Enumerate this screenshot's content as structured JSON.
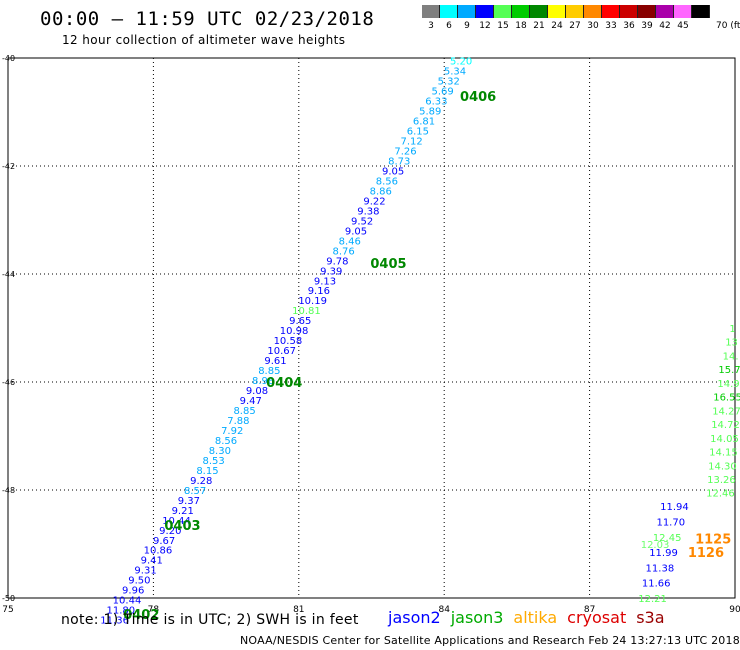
{
  "header": {
    "title": "00:00 – 11:59 UTC 02/23/2018",
    "subtitle": "12 hour collection of altimeter wave heights"
  },
  "color_scale": {
    "unit": "70 (ft)",
    "swatches": [
      {
        "label": "3",
        "color": "#7f7f7f"
      },
      {
        "label": "6",
        "color": "#00ffff"
      },
      {
        "label": "9",
        "color": "#00aaff"
      },
      {
        "label": "12",
        "color": "#0000ff"
      },
      {
        "label": "15",
        "color": "#55ff55"
      },
      {
        "label": "18",
        "color": "#00cc00"
      },
      {
        "label": "21",
        "color": "#008800"
      },
      {
        "label": "24",
        "color": "#ffff00"
      },
      {
        "label": "27",
        "color": "#ffcc00"
      },
      {
        "label": "30",
        "color": "#ff8800"
      },
      {
        "label": "33",
        "color": "#ff0000"
      },
      {
        "label": "36",
        "color": "#cc0000"
      },
      {
        "label": "39",
        "color": "#880000"
      },
      {
        "label": "42",
        "color": "#aa00aa"
      },
      {
        "label": "45",
        "color": "#ff66ff"
      },
      {
        "label": "",
        "color": "#000000"
      }
    ]
  },
  "map": {
    "lon_ticks": [
      "75",
      "78",
      "81",
      "84",
      "87",
      "90"
    ],
    "lat_ticks": [
      "-40",
      "-42",
      "-44",
      "-46",
      "-48",
      "-50"
    ],
    "grid": true
  },
  "tracks": [
    {
      "name": "main",
      "start": {
        "lon": 77.2,
        "lat": -50.4
      },
      "end": {
        "lon": 84.35,
        "lat": -40.05
      },
      "values": [
        "11.36",
        "11.80",
        "10.44",
        "9.96",
        "9.50",
        "9.31",
        "9.41",
        "10.86",
        "9.67",
        "9.20",
        "10.44",
        "9.21",
        "9.37",
        "8.57",
        "9.28",
        "8.15",
        "8.53",
        "8.30",
        "8.56",
        "7.92",
        "7.88",
        "8.85",
        "9.47",
        "9.08",
        "8.98",
        "8.85",
        "9.61",
        "10.67",
        "10.58",
        "10.98",
        "9.65",
        "10.81",
        "10.19",
        "9.16",
        "9.13",
        "9.39",
        "9.78",
        "8.76",
        "8.46",
        "9.05",
        "9.52",
        "9.38",
        "9.22",
        "8.86",
        "8.56",
        "9.05",
        "8.73",
        "7.26",
        "7.12",
        "6.15",
        "6.81",
        "5.89",
        "6.33",
        "5.69",
        "5.32",
        "5.34",
        "5.20"
      ],
      "colors": [
        "#0000ff",
        "#0000ff",
        "#0000ff",
        "#0000ff",
        "#0000ff",
        "#0000ff",
        "#0000ff",
        "#0000ff",
        "#0000ff",
        "#0000ff",
        "#0000ff",
        "#0000ff",
        "#0000ff",
        "#00aaff",
        "#0000ff",
        "#00aaff",
        "#00aaff",
        "#00aaff",
        "#00aaff",
        "#00aaff",
        "#00aaff",
        "#00aaff",
        "#0000ff",
        "#0000ff",
        "#00aaff",
        "#00aaff",
        "#0000ff",
        "#0000ff",
        "#0000ff",
        "#0000ff",
        "#0000ff",
        "#55ff55",
        "#0000ff",
        "#0000ff",
        "#0000ff",
        "#0000ff",
        "#0000ff",
        "#00aaff",
        "#00aaff",
        "#0000ff",
        "#0000ff",
        "#0000ff",
        "#0000ff",
        "#00aaff",
        "#00aaff",
        "#0000ff",
        "#00aaff",
        "#00aaff",
        "#00aaff",
        "#00aaff",
        "#00aaff",
        "#00aaff",
        "#00aaff",
        "#00aaff",
        "#00aaff",
        "#00aaff",
        "#00ffff"
      ]
    },
    {
      "name": "east-upper",
      "start": {
        "lon": 89.95,
        "lat": -45.0
      },
      "end": {
        "lon": 89.7,
        "lat": -48.05
      },
      "values": [
        "1",
        "13",
        "14.",
        "15.7",
        "14.9",
        "16.55",
        "14.27",
        "14.72",
        "14.05",
        "14.15",
        "14.30",
        "13.26",
        "12.46"
      ],
      "colors": [
        "#55ff55",
        "#55ff55",
        "#55ff55",
        "#00cc00",
        "#55ff55",
        "#00cc00",
        "#55ff55",
        "#55ff55",
        "#55ff55",
        "#55ff55",
        "#55ff55",
        "#55ff55",
        "#55ff55"
      ]
    },
    {
      "name": "east-lower",
      "start": {
        "lon": 88.75,
        "lat": -48.3
      },
      "end": {
        "lon": 88.3,
        "lat": -50.0
      },
      "values": [
        "11.94",
        "11.70",
        "12.45",
        "11.99",
        "11.38",
        "11.66",
        "12.21"
      ],
      "colors": [
        "#0000ff",
        "#0000ff",
        "#55ff55",
        "#0000ff",
        "#0000ff",
        "#0000ff",
        "#55ff55"
      ]
    }
  ],
  "overlap_label": {
    "text": "12.03",
    "lon": 88.35,
    "lat": -49.0,
    "color": "#55ff55"
  },
  "time_labels": [
    {
      "text": "0402",
      "lon": 77.75,
      "lat": -50.3,
      "color": "#008800"
    },
    {
      "text": "0403",
      "lon": 78.6,
      "lat": -48.65,
      "color": "#008800"
    },
    {
      "text": "0404",
      "lon": 80.7,
      "lat": -46.0,
      "color": "#008800"
    },
    {
      "text": "0405",
      "lon": 82.85,
      "lat": -43.8,
      "color": "#008800"
    },
    {
      "text": "0406",
      "lon": 84.7,
      "lat": -40.7,
      "color": "#008800"
    },
    {
      "text": "1125",
      "lon": 89.55,
      "lat": -48.9,
      "color": "#ff8800"
    },
    {
      "text": "1126",
      "lon": 89.4,
      "lat": -49.15,
      "color": "#ff8800"
    }
  ],
  "legend": {
    "note": "note: 1) Time is in UTC; 2) SWH is in feet",
    "missions": [
      {
        "name": "jason2",
        "color": "#0000ff"
      },
      {
        "name": "jason3",
        "color": "#00aa00"
      },
      {
        "name": "altika",
        "color": "#ffaa00"
      },
      {
        "name": "cryosat",
        "color": "#dd0000"
      },
      {
        "name": "s3a",
        "color": "#990000"
      }
    ]
  },
  "footer": "NOAA/NESDIS Center for Satellite Applications and Research   Feb 24 13:27:13 UTC 2018"
}
